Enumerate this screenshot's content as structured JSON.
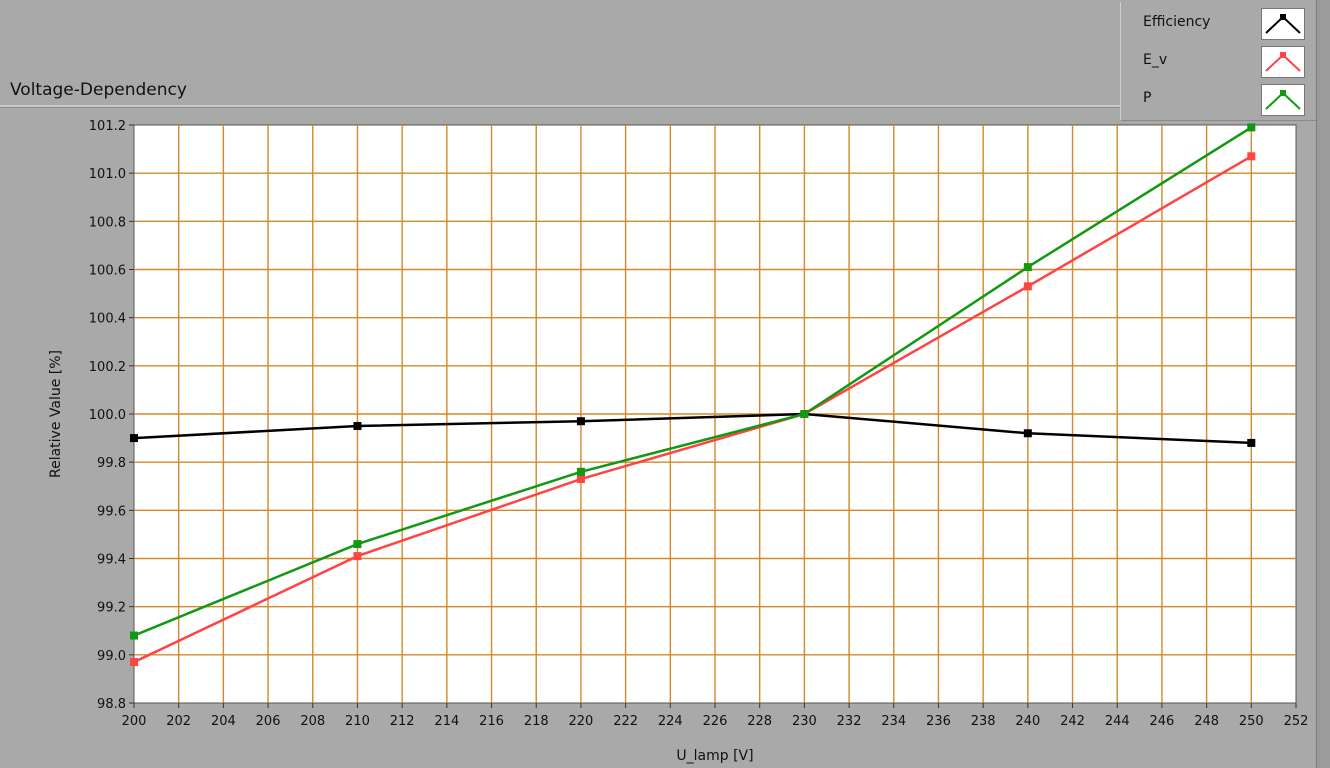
{
  "panel": {
    "title": "Voltage-Dependency"
  },
  "legend": {
    "items": [
      {
        "label": "Efficiency",
        "color": "#000000"
      },
      {
        "label": "E_v",
        "color": "#ff4444"
      },
      {
        "label": "P",
        "color": "#119911"
      }
    ]
  },
  "chart_data": {
    "type": "line",
    "title": "Voltage-Dependency",
    "xlabel": "U_lamp [V]",
    "ylabel": "Relative Value [%]",
    "xlim": [
      200,
      252
    ],
    "ylim": [
      98.8,
      101.2
    ],
    "x_ticks": [
      200,
      202,
      204,
      206,
      208,
      210,
      212,
      214,
      216,
      218,
      220,
      222,
      224,
      226,
      228,
      230,
      232,
      234,
      236,
      238,
      240,
      242,
      244,
      246,
      248,
      250,
      252
    ],
    "y_ticks": [
      98.8,
      99.0,
      99.2,
      99.4,
      99.6,
      99.8,
      100.0,
      100.2,
      100.4,
      100.6,
      100.8,
      101.0,
      101.2
    ],
    "grid": true,
    "grid_color": "#d4882a",
    "legend_position": "top-right",
    "x": [
      200,
      210,
      220,
      230,
      240,
      250
    ],
    "series": [
      {
        "name": "Efficiency",
        "color": "#000000",
        "values": [
          99.9,
          99.95,
          99.97,
          100.0,
          99.92,
          99.88
        ]
      },
      {
        "name": "E_v",
        "color": "#ff4444",
        "values": [
          98.97,
          99.41,
          99.73,
          100.0,
          100.53,
          101.07
        ]
      },
      {
        "name": "P",
        "color": "#119911",
        "values": [
          99.08,
          99.46,
          99.76,
          100.0,
          100.61,
          101.19
        ]
      }
    ]
  }
}
